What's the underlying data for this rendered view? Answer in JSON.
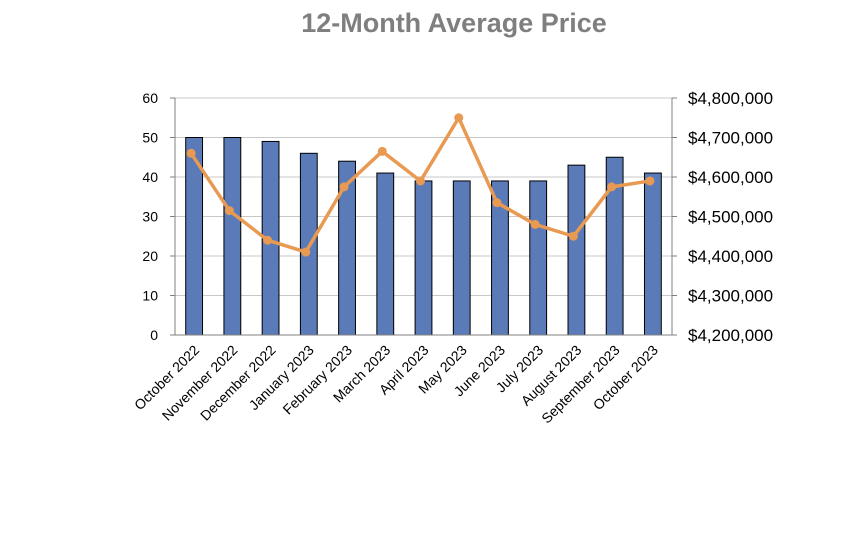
{
  "chart_data": {
    "type": "bar",
    "title": "12-Month Average Price",
    "xlabel": "",
    "ylabel": "",
    "y2label": "",
    "categories": [
      "October 2022",
      "November 2022",
      "December 2022",
      "January 2023",
      "February 2023",
      "March 2023",
      "April 2023",
      "May 2023",
      "June 2023",
      "July 2023",
      "August 2023",
      "September 2023",
      "October 2023"
    ],
    "series": [
      {
        "type": "bar",
        "axis": "left",
        "color": "#5a7ab8",
        "values": [
          50,
          50,
          49,
          46,
          44,
          41,
          39,
          39,
          39,
          39,
          43,
          45,
          41
        ]
      },
      {
        "type": "line",
        "axis": "right",
        "color": "#e89a52",
        "values": [
          4660000,
          4515000,
          4440000,
          4410000,
          4575000,
          4665000,
          4590000,
          4750000,
          4535000,
          4480000,
          4450000,
          4575000,
          4590000
        ]
      }
    ],
    "ylim": [
      0,
      60
    ],
    "y_ticks": [
      0,
      10,
      20,
      30,
      40,
      50,
      60
    ],
    "y2lim": [
      4200000,
      4800000
    ],
    "y2_ticks": [
      "$4,200,000",
      "$4,300,000",
      "$4,400,000",
      "$4,500,000",
      "$4,600,000",
      "$4,700,000",
      "$4,800,000"
    ],
    "grid": true,
    "legend": "none"
  }
}
